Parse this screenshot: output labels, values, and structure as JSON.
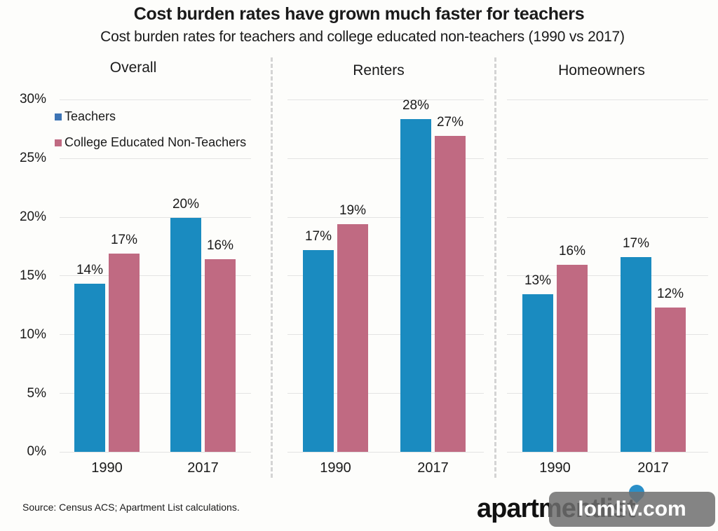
{
  "header": {
    "title": "Cost burden rates have grown much faster for teachers",
    "subtitle": "Cost burden rates for teachers and college educated non-teachers (1990 vs 2017)"
  },
  "legend": {
    "teachers": "Teachers",
    "non_teachers": "College Educated Non-Teachers"
  },
  "colors": {
    "teachers": "#1a8bc0",
    "non_teachers": "#c06a82"
  },
  "yticks": [
    "30%",
    "25%",
    "20%",
    "15%",
    "10%",
    "5%",
    "0%"
  ],
  "panels": [
    {
      "title": "Overall",
      "groups": [
        {
          "x": "1990",
          "teachers": "14%",
          "non_teachers": "17%"
        },
        {
          "x": "2017",
          "teachers": "20%",
          "non_teachers": "16%"
        }
      ]
    },
    {
      "title": "Renters",
      "groups": [
        {
          "x": "1990",
          "teachers": "17%",
          "non_teachers": "19%"
        },
        {
          "x": "2017",
          "teachers": "28%",
          "non_teachers": "27%"
        }
      ]
    },
    {
      "title": "Homeowners",
      "groups": [
        {
          "x": "1990",
          "teachers": "13%",
          "non_teachers": "16%"
        },
        {
          "x": "2017",
          "teachers": "17%",
          "non_teachers": "12%"
        }
      ]
    }
  ],
  "footer": {
    "source": "Source: Census ACS; Apartment List calculations.",
    "logo": "apartmentlist",
    "watermark": "lomliv.com"
  },
  "chart_data": {
    "type": "bar",
    "title": "Cost burden rates have grown much faster for teachers",
    "subtitle": "Cost burden rates for teachers and college educated non-teachers (1990 vs 2017)",
    "xlabel": "",
    "ylabel": "",
    "ylim": [
      0,
      30
    ],
    "ytick_labels": [
      "0%",
      "5%",
      "10%",
      "15%",
      "20%",
      "25%",
      "30%"
    ],
    "grid": true,
    "legend_position": "top-left",
    "facets": [
      "Overall",
      "Renters",
      "Homeowners"
    ],
    "categories": [
      "1990",
      "2017"
    ],
    "panels": [
      {
        "title": "Overall",
        "series": [
          {
            "name": "Teachers",
            "values": [
              14.3,
              19.9
            ]
          },
          {
            "name": "College Educated Non-Teachers",
            "values": [
              16.9,
              16.4
            ]
          }
        ],
        "data_labels": {
          "Teachers": [
            "14%",
            "20%"
          ],
          "College Educated Non-Teachers": [
            "17%",
            "16%"
          ]
        }
      },
      {
        "title": "Renters",
        "series": [
          {
            "name": "Teachers",
            "values": [
              17.2,
              28.3
            ]
          },
          {
            "name": "College Educated Non-Teachers",
            "values": [
              19.4,
              26.9
            ]
          }
        ],
        "data_labels": {
          "Teachers": [
            "17%",
            "28%"
          ],
          "College Educated Non-Teachers": [
            "19%",
            "27%"
          ]
        }
      },
      {
        "title": "Homeowners",
        "series": [
          {
            "name": "Teachers",
            "values": [
              13.4,
              16.6
            ]
          },
          {
            "name": "College Educated Non-Teachers",
            "values": [
              15.9,
              12.3
            ]
          }
        ],
        "data_labels": {
          "Teachers": [
            "13%",
            "17%"
          ],
          "College Educated Non-Teachers": [
            "16%",
            "12%"
          ]
        }
      }
    ],
    "source": "Source: Census ACS; Apartment List calculations."
  }
}
